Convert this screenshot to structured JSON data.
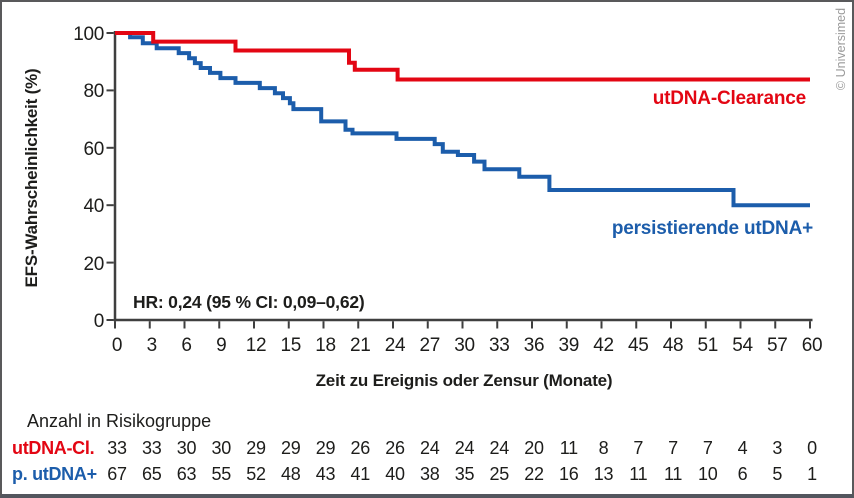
{
  "branding": {
    "copyright": "© Universimed"
  },
  "annotation": {
    "hr": "HR: 0,24 (95 % CI: 0,09–0,62)"
  },
  "risk_table": {
    "title": "Anzahl in Risikogruppe",
    "rows": [
      {
        "label": "utDNA-Cl.",
        "color": "#e30613",
        "values": [
          33,
          33,
          30,
          30,
          29,
          29,
          29,
          26,
          26,
          24,
          24,
          24,
          20,
          11,
          8,
          7,
          7,
          7,
          4,
          3,
          0
        ]
      },
      {
        "label": "p. utDNA+",
        "color": "#1c5dab",
        "values": [
          67,
          65,
          63,
          55,
          52,
          48,
          43,
          41,
          40,
          38,
          35,
          25,
          22,
          16,
          13,
          11,
          11,
          10,
          6,
          5,
          1
        ]
      }
    ]
  },
  "chart_data": {
    "type": "line",
    "subtype": "kaplan-meier-step",
    "title": "",
    "xlabel": "Zeit zu Ereignis oder Zensur (Monate)",
    "ylabel": "EFS-Wahrscheinlichkeit (%)",
    "xlim": [
      0,
      60
    ],
    "ylim": [
      0,
      100
    ],
    "xticks": [
      0,
      3,
      6,
      9,
      12,
      15,
      18,
      21,
      24,
      27,
      30,
      33,
      36,
      39,
      42,
      45,
      48,
      51,
      54,
      57,
      60
    ],
    "yticks": [
      0,
      20,
      40,
      60,
      80,
      100
    ],
    "grid": false,
    "legend_position": "on-chart",
    "axis_color": "#3f3f3f",
    "annotation": "HR: 0,24 (95 % CI: 0,09–0,62)",
    "series": [
      {
        "name": "utDNA-Clearance",
        "color": "#e30613",
        "points": [
          [
            0,
            100
          ],
          [
            3.3,
            97
          ],
          [
            10.4,
            93.9
          ],
          [
            20.2,
            89.6
          ],
          [
            20.7,
            87.2
          ],
          [
            24.4,
            83.8
          ]
        ]
      },
      {
        "name": "persistierende utDNA+",
        "color": "#1c5dab",
        "points": [
          [
            0,
            100
          ],
          [
            1.3,
            98.5
          ],
          [
            2.4,
            96.4
          ],
          [
            3.6,
            94.7
          ],
          [
            5.5,
            93
          ],
          [
            6.4,
            91.2
          ],
          [
            6.9,
            89.5
          ],
          [
            7.4,
            87.8
          ],
          [
            8.2,
            86.1
          ],
          [
            9.1,
            84.3
          ],
          [
            10.4,
            82.6
          ],
          [
            12.5,
            80.8
          ],
          [
            13.8,
            79
          ],
          [
            14.5,
            77.3
          ],
          [
            15.1,
            75.5
          ],
          [
            15.4,
            73.5
          ],
          [
            17.8,
            69.2
          ],
          [
            19.9,
            66.3
          ],
          [
            20.5,
            65
          ],
          [
            24.3,
            63.1
          ],
          [
            27.6,
            61.3
          ],
          [
            28.3,
            58.6
          ],
          [
            29.6,
            57.5
          ],
          [
            31,
            55.2
          ],
          [
            31.9,
            52.5
          ],
          [
            34.9,
            49.9
          ],
          [
            37.5,
            45.3
          ],
          [
            53.4,
            40
          ]
        ]
      }
    ]
  }
}
